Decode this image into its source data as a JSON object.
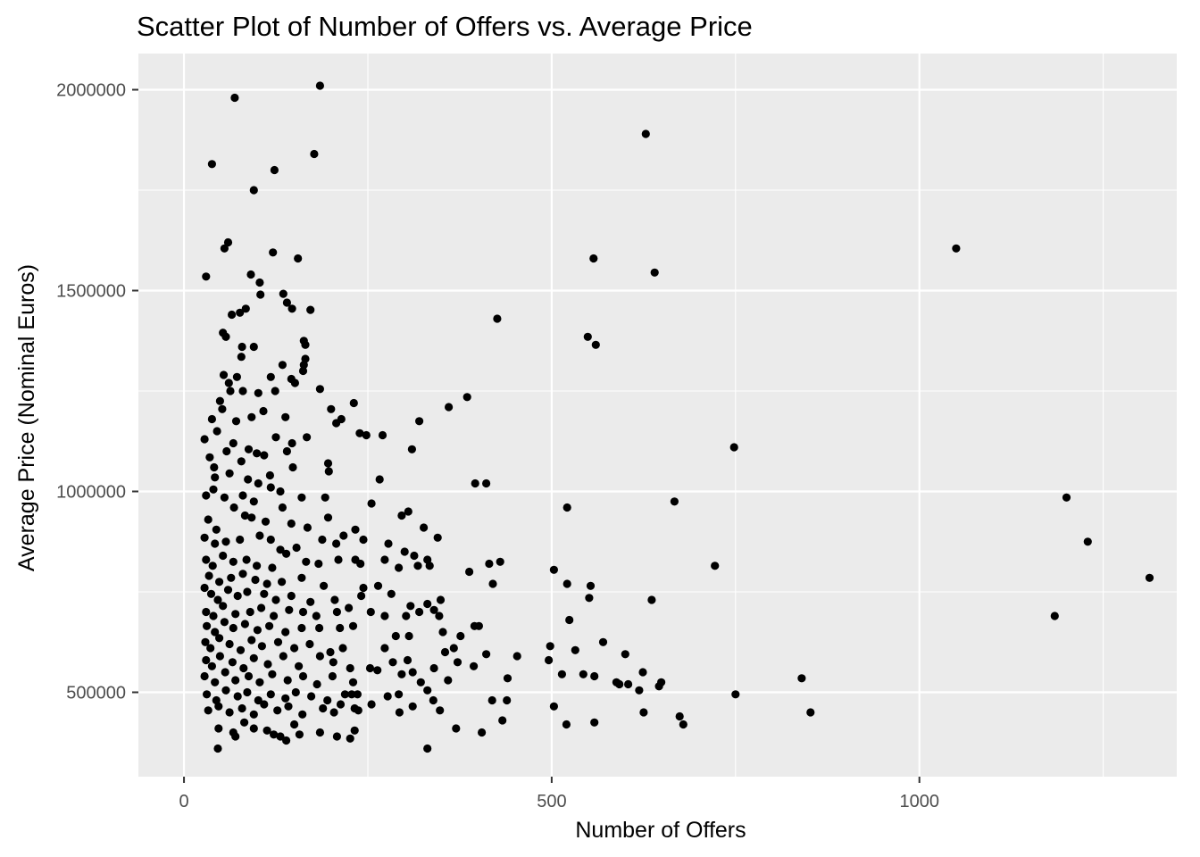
{
  "chart_data": {
    "type": "scatter",
    "title": "Scatter Plot of Number of Offers vs. Average Price",
    "xlabel": "Number of Offers",
    "ylabel": "Average Price (Nominal Euros)",
    "xlim": [
      -62,
      1350
    ],
    "ylim": [
      290000,
      2090000
    ],
    "x_ticks": [
      0,
      500,
      1000
    ],
    "x_tick_labels": [
      "0",
      "500",
      "1000"
    ],
    "x_minor_ticks": [
      250,
      750,
      1250
    ],
    "y_ticks": [
      500000,
      1000000,
      1500000,
      2000000
    ],
    "y_tick_labels": [
      "500000",
      "1000000",
      "1500000",
      "2000000"
    ],
    "y_minor_ticks": [
      750000,
      1250000,
      1750000
    ],
    "grid": true,
    "panel_background": "#ebebeb",
    "point_color": "#000000",
    "points": [
      [
        69,
        1980000
      ],
      [
        185,
        2010000
      ],
      [
        38,
        1815000
      ],
      [
        123,
        1800000
      ],
      [
        177,
        1840000
      ],
      [
        95,
        1750000
      ],
      [
        30,
        1535000
      ],
      [
        60,
        1620000
      ],
      [
        55,
        1605000
      ],
      [
        121,
        1595000
      ],
      [
        155,
        1580000
      ],
      [
        91,
        1540000
      ],
      [
        103,
        1520000
      ],
      [
        104,
        1490000
      ],
      [
        135,
        1492000
      ],
      [
        140,
        1470000
      ],
      [
        65,
        1440000
      ],
      [
        76,
        1445000
      ],
      [
        84,
        1455000
      ],
      [
        147,
        1455000
      ],
      [
        172,
        1452000
      ],
      [
        53,
        1395000
      ],
      [
        57,
        1385000
      ],
      [
        79,
        1360000
      ],
      [
        95,
        1360000
      ],
      [
        163,
        1375000
      ],
      [
        165,
        1365000
      ],
      [
        78,
        1335000
      ],
      [
        165,
        1330000
      ],
      [
        54,
        1290000
      ],
      [
        61,
        1270000
      ],
      [
        72,
        1285000
      ],
      [
        118,
        1285000
      ],
      [
        134,
        1315000
      ],
      [
        146,
        1280000
      ],
      [
        163,
        1315000
      ],
      [
        185,
        1255000
      ],
      [
        49,
        1225000
      ],
      [
        63,
        1250000
      ],
      [
        80,
        1250000
      ],
      [
        101,
        1245000
      ],
      [
        124,
        1250000
      ],
      [
        151,
        1270000
      ],
      [
        162,
        1300000
      ],
      [
        38,
        1180000
      ],
      [
        52,
        1205000
      ],
      [
        71,
        1175000
      ],
      [
        92,
        1185000
      ],
      [
        108,
        1200000
      ],
      [
        138,
        1185000
      ],
      [
        200,
        1205000
      ],
      [
        231,
        1220000
      ],
      [
        207,
        1170000
      ],
      [
        214,
        1180000
      ],
      [
        270,
        1140000
      ],
      [
        28,
        1130000
      ],
      [
        45,
        1150000
      ],
      [
        67,
        1120000
      ],
      [
        88,
        1105000
      ],
      [
        109,
        1090000
      ],
      [
        125,
        1135000
      ],
      [
        147,
        1120000
      ],
      [
        167,
        1135000
      ],
      [
        35,
        1085000
      ],
      [
        41,
        1060000
      ],
      [
        58,
        1100000
      ],
      [
        78,
        1075000
      ],
      [
        99,
        1095000
      ],
      [
        140,
        1100000
      ],
      [
        148,
        1060000
      ],
      [
        196,
        1070000
      ],
      [
        42,
        1035000
      ],
      [
        62,
        1045000
      ],
      [
        87,
        1030000
      ],
      [
        101,
        1020000
      ],
      [
        117,
        1040000
      ],
      [
        131,
        1000000
      ],
      [
        197,
        1050000
      ],
      [
        266,
        1030000
      ],
      [
        310,
        1105000
      ],
      [
        320,
        1175000
      ],
      [
        360,
        1210000
      ],
      [
        385,
        1235000
      ],
      [
        396,
        1020000
      ],
      [
        411,
        1020000
      ],
      [
        239,
        1145000
      ],
      [
        248,
        1140000
      ],
      [
        30,
        990000
      ],
      [
        40,
        1005000
      ],
      [
        55,
        985000
      ],
      [
        80,
        990000
      ],
      [
        95,
        975000
      ],
      [
        118,
        1010000
      ],
      [
        134,
        960000
      ],
      [
        160,
        985000
      ],
      [
        192,
        985000
      ],
      [
        33,
        930000
      ],
      [
        44,
        905000
      ],
      [
        68,
        960000
      ],
      [
        83,
        940000
      ],
      [
        92,
        935000
      ],
      [
        111,
        925000
      ],
      [
        146,
        920000
      ],
      [
        168,
        910000
      ],
      [
        196,
        935000
      ],
      [
        233,
        905000
      ],
      [
        255,
        970000
      ],
      [
        296,
        940000
      ],
      [
        305,
        950000
      ],
      [
        326,
        910000
      ],
      [
        345,
        885000
      ],
      [
        28,
        885000
      ],
      [
        42,
        870000
      ],
      [
        57,
        875000
      ],
      [
        76,
        880000
      ],
      [
        103,
        890000
      ],
      [
        118,
        880000
      ],
      [
        131,
        855000
      ],
      [
        153,
        860000
      ],
      [
        188,
        880000
      ],
      [
        207,
        870000
      ],
      [
        217,
        890000
      ],
      [
        244,
        880000
      ],
      [
        278,
        870000
      ],
      [
        300,
        850000
      ],
      [
        313,
        840000
      ],
      [
        331,
        830000
      ],
      [
        30,
        830000
      ],
      [
        39,
        815000
      ],
      [
        53,
        840000
      ],
      [
        67,
        825000
      ],
      [
        85,
        830000
      ],
      [
        99,
        815000
      ],
      [
        120,
        810000
      ],
      [
        139,
        845000
      ],
      [
        166,
        825000
      ],
      [
        183,
        820000
      ],
      [
        210,
        830000
      ],
      [
        233,
        830000
      ],
      [
        240,
        820000
      ],
      [
        273,
        830000
      ],
      [
        292,
        810000
      ],
      [
        318,
        815000
      ],
      [
        334,
        815000
      ],
      [
        388,
        800000
      ],
      [
        415,
        820000
      ],
      [
        430,
        825000
      ],
      [
        503,
        805000
      ],
      [
        722,
        815000
      ],
      [
        34,
        790000
      ],
      [
        48,
        775000
      ],
      [
        64,
        785000
      ],
      [
        80,
        795000
      ],
      [
        97,
        780000
      ],
      [
        113,
        770000
      ],
      [
        133,
        775000
      ],
      [
        160,
        785000
      ],
      [
        190,
        765000
      ],
      [
        244,
        760000
      ],
      [
        264,
        765000
      ],
      [
        282,
        745000
      ],
      [
        308,
        715000
      ],
      [
        331,
        720000
      ],
      [
        349,
        730000
      ],
      [
        420,
        770000
      ],
      [
        521,
        770000
      ],
      [
        553,
        765000
      ],
      [
        28,
        760000
      ],
      [
        37,
        745000
      ],
      [
        46,
        730000
      ],
      [
        60,
        755000
      ],
      [
        73,
        740000
      ],
      [
        86,
        750000
      ],
      [
        109,
        745000
      ],
      [
        125,
        730000
      ],
      [
        146,
        740000
      ],
      [
        172,
        725000
      ],
      [
        205,
        730000
      ],
      [
        224,
        710000
      ],
      [
        241,
        740000
      ],
      [
        30,
        700000
      ],
      [
        40,
        690000
      ],
      [
        53,
        715000
      ],
      [
        70,
        695000
      ],
      [
        90,
        700000
      ],
      [
        105,
        710000
      ],
      [
        122,
        690000
      ],
      [
        143,
        705000
      ],
      [
        162,
        700000
      ],
      [
        180,
        690000
      ],
      [
        208,
        700000
      ],
      [
        254,
        700000
      ],
      [
        273,
        690000
      ],
      [
        302,
        690000
      ],
      [
        320,
        700000
      ],
      [
        340,
        705000
      ],
      [
        347,
        690000
      ],
      [
        401,
        665000
      ],
      [
        551,
        735000
      ],
      [
        636,
        730000
      ],
      [
        667,
        975000
      ],
      [
        748,
        1110000
      ],
      [
        31,
        665000
      ],
      [
        42,
        650000
      ],
      [
        55,
        675000
      ],
      [
        67,
        660000
      ],
      [
        83,
        670000
      ],
      [
        100,
        655000
      ],
      [
        116,
        665000
      ],
      [
        138,
        650000
      ],
      [
        160,
        660000
      ],
      [
        184,
        660000
      ],
      [
        212,
        660000
      ],
      [
        230,
        665000
      ],
      [
        288,
        640000
      ],
      [
        306,
        640000
      ],
      [
        352,
        650000
      ],
      [
        376,
        640000
      ],
      [
        395,
        665000
      ],
      [
        524,
        680000
      ],
      [
        29,
        625000
      ],
      [
        36,
        610000
      ],
      [
        48,
        635000
      ],
      [
        62,
        620000
      ],
      [
        77,
        605000
      ],
      [
        92,
        630000
      ],
      [
        106,
        615000
      ],
      [
        128,
        625000
      ],
      [
        150,
        610000
      ],
      [
        171,
        620000
      ],
      [
        199,
        600000
      ],
      [
        216,
        610000
      ],
      [
        273,
        610000
      ],
      [
        304,
        580000
      ],
      [
        355,
        600000
      ],
      [
        367,
        610000
      ],
      [
        411,
        595000
      ],
      [
        453,
        590000
      ],
      [
        498,
        615000
      ],
      [
        532,
        605000
      ],
      [
        570,
        625000
      ],
      [
        600,
        595000
      ],
      [
        624,
        550000
      ],
      [
        646,
        515000
      ],
      [
        30,
        580000
      ],
      [
        38,
        565000
      ],
      [
        49,
        590000
      ],
      [
        66,
        575000
      ],
      [
        81,
        560000
      ],
      [
        95,
        585000
      ],
      [
        114,
        570000
      ],
      [
        135,
        590000
      ],
      [
        156,
        565000
      ],
      [
        185,
        590000
      ],
      [
        203,
        575000
      ],
      [
        226,
        560000
      ],
      [
        253,
        560000
      ],
      [
        284,
        575000
      ],
      [
        311,
        550000
      ],
      [
        340,
        560000
      ],
      [
        372,
        575000
      ],
      [
        394,
        565000
      ],
      [
        496,
        580000
      ],
      [
        514,
        545000
      ],
      [
        543,
        545000
      ],
      [
        558,
        540000
      ],
      [
        588,
        525000
      ],
      [
        604,
        520000
      ],
      [
        592,
        520000
      ],
      [
        649,
        525000
      ],
      [
        28,
        540000
      ],
      [
        42,
        525000
      ],
      [
        56,
        550000
      ],
      [
        70,
        530000
      ],
      [
        88,
        540000
      ],
      [
        103,
        525000
      ],
      [
        120,
        545000
      ],
      [
        141,
        530000
      ],
      [
        162,
        540000
      ],
      [
        181,
        520000
      ],
      [
        202,
        540000
      ],
      [
        230,
        525000
      ],
      [
        263,
        555000
      ],
      [
        296,
        545000
      ],
      [
        322,
        525000
      ],
      [
        359,
        530000
      ],
      [
        440,
        535000
      ],
      [
        31,
        495000
      ],
      [
        44,
        480000
      ],
      [
        57,
        505000
      ],
      [
        73,
        490000
      ],
      [
        86,
        500000
      ],
      [
        101,
        480000
      ],
      [
        118,
        495000
      ],
      [
        138,
        485000
      ],
      [
        152,
        500000
      ],
      [
        173,
        490000
      ],
      [
        195,
        480000
      ],
      [
        219,
        495000
      ],
      [
        228,
        495000
      ],
      [
        236,
        495000
      ],
      [
        277,
        490000
      ],
      [
        292,
        495000
      ],
      [
        331,
        505000
      ],
      [
        339,
        480000
      ],
      [
        419,
        480000
      ],
      [
        439,
        480000
      ],
      [
        619,
        505000
      ],
      [
        750,
        495000
      ],
      [
        33,
        455000
      ],
      [
        47,
        465000
      ],
      [
        62,
        450000
      ],
      [
        79,
        460000
      ],
      [
        95,
        445000
      ],
      [
        109,
        470000
      ],
      [
        127,
        455000
      ],
      [
        142,
        465000
      ],
      [
        161,
        445000
      ],
      [
        189,
        460000
      ],
      [
        204,
        450000
      ],
      [
        213,
        470000
      ],
      [
        232,
        460000
      ],
      [
        237,
        455000
      ],
      [
        255,
        470000
      ],
      [
        293,
        450000
      ],
      [
        311,
        465000
      ],
      [
        348,
        455000
      ],
      [
        503,
        465000
      ],
      [
        625,
        450000
      ],
      [
        840,
        535000
      ],
      [
        852,
        450000
      ],
      [
        674,
        440000
      ],
      [
        679,
        420000
      ],
      [
        433,
        430000
      ],
      [
        558,
        425000
      ],
      [
        520,
        420000
      ],
      [
        47,
        410000
      ],
      [
        67,
        400000
      ],
      [
        82,
        425000
      ],
      [
        95,
        410000
      ],
      [
        113,
        405000
      ],
      [
        131,
        390000
      ],
      [
        150,
        420000
      ],
      [
        185,
        400000
      ],
      [
        232,
        405000
      ],
      [
        208,
        390000
      ],
      [
        226,
        385000
      ],
      [
        370,
        410000
      ],
      [
        405,
        400000
      ],
      [
        46,
        360000
      ],
      [
        70,
        390000
      ],
      [
        139,
        380000
      ],
      [
        122,
        395000
      ],
      [
        331,
        360000
      ],
      [
        157,
        395000
      ],
      [
        426,
        1430000
      ],
      [
        549,
        1385000
      ],
      [
        560,
        1365000
      ],
      [
        557,
        1580000
      ],
      [
        640,
        1545000
      ],
      [
        628,
        1890000
      ],
      [
        1050,
        1605000
      ],
      [
        1200,
        985000
      ],
      [
        1229,
        875000
      ],
      [
        1313,
        785000
      ],
      [
        1184,
        690000
      ],
      [
        521,
        960000
      ]
    ]
  }
}
